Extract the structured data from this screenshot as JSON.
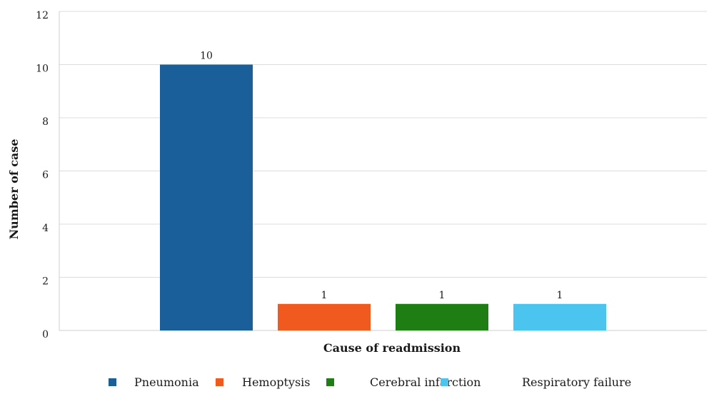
{
  "chart_data": {
    "type": "bar",
    "title": "",
    "xlabel": "Cause of readmission",
    "ylabel": "Number of case",
    "ylim": [
      0,
      12
    ],
    "yticks": [
      0,
      2,
      4,
      6,
      8,
      10,
      12
    ],
    "grid": true,
    "legend_position": "bottom",
    "categories": [
      "Pneumonia",
      "Hemoptysis",
      "Cerebral infarction",
      "Respiratory failure"
    ],
    "values": [
      10,
      1,
      1,
      1
    ],
    "data_labels": [
      "10",
      "1",
      "1",
      "1"
    ],
    "colors": [
      "#1a5f9a",
      "#f05a1e",
      "#1e7d13",
      "#4cc4f0"
    ]
  }
}
